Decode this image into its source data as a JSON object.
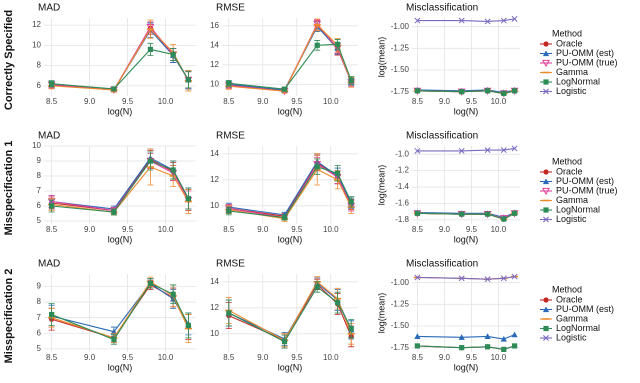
{
  "rows": [
    {
      "label": "Correctly Specified",
      "legend_title": "Method"
    },
    {
      "label": "Misspecification 1",
      "legend_title": "Method"
    },
    {
      "label": "Misspecification 2",
      "legend_title": "Method"
    }
  ],
  "chart_data": [
    {
      "type": "line",
      "title": "MAD",
      "xlabel": "log(N)",
      "x": [
        8.5,
        9.32,
        9.8,
        10.1,
        10.3
      ],
      "xlim": [
        8.4,
        10.4
      ],
      "xticks": [
        8.5,
        {
          "value": 9,
          "label": "9.0"
        },
        9.5,
        {
          "value": 10,
          "label": "10.0"
        }
      ],
      "ylim": [
        5,
        12.7
      ],
      "yticks": [
        6,
        8,
        10,
        12
      ],
      "grid": true,
      "series": [
        {
          "name": "Oracle",
          "color": "#c62828",
          "marker": "circle",
          "values": [
            6.1,
            5.6,
            11.7,
            9.0,
            6.6
          ],
          "errors": [
            0.3,
            0.2,
            0.6,
            0.7,
            0.9
          ]
        },
        {
          "name": "PU-OMM (est)",
          "color": "#2a6ab8",
          "marker": "triangle",
          "values": [
            6.2,
            5.6,
            11.5,
            9.0,
            6.6
          ],
          "errors": [
            0.3,
            0.2,
            0.7,
            0.7,
            0.9
          ]
        },
        {
          "name": "PU-OMM (true)",
          "color": "#e0409c",
          "marker": "down",
          "values": [
            6.1,
            5.6,
            11.8,
            9.1,
            6.6
          ],
          "errors": [
            0.3,
            0.2,
            0.5,
            0.6,
            0.8
          ]
        },
        {
          "name": "Gamma",
          "color": "#ef8a2a",
          "marker": "dash",
          "values": [
            6.0,
            5.6,
            11.6,
            9.3,
            6.5
          ],
          "errors": [
            0.3,
            0.2,
            0.9,
            0.8,
            1.0
          ]
        },
        {
          "name": "LogNormal",
          "color": "#2e8b57",
          "marker": "square",
          "values": [
            6.2,
            5.7,
            9.6,
            9.1,
            6.6
          ],
          "errors": [
            0.3,
            0.2,
            0.6,
            0.6,
            0.8
          ]
        }
      ]
    },
    {
      "type": "line",
      "title": "RMSE",
      "xlabel": "log(N)",
      "x": [
        8.5,
        9.32,
        9.8,
        10.1,
        10.3
      ],
      "xlim": [
        8.4,
        10.4
      ],
      "xticks": [
        8.5,
        {
          "value": 9,
          "label": "9.0"
        },
        9.5,
        {
          "value": 10,
          "label": "10.0"
        }
      ],
      "ylim": [
        8.8,
        16.8
      ],
      "yticks": [
        10,
        12,
        14,
        16
      ],
      "grid": true,
      "series": [
        {
          "name": "Oracle",
          "color": "#c62828",
          "marker": "circle",
          "values": [
            9.9,
            9.4,
            16.0,
            13.6,
            10.3
          ],
          "errors": [
            0.3,
            0.2,
            0.5,
            0.6,
            0.4
          ]
        },
        {
          "name": "PU-OMM (est)",
          "color": "#2a6ab8",
          "marker": "triangle",
          "values": [
            10.0,
            9.4,
            15.9,
            13.7,
            10.3
          ],
          "errors": [
            0.3,
            0.2,
            0.5,
            0.6,
            0.4
          ]
        },
        {
          "name": "PU-OMM (true)",
          "color": "#e0409c",
          "marker": "down",
          "values": [
            9.9,
            9.3,
            16.2,
            13.7,
            10.2
          ],
          "errors": [
            0.3,
            0.2,
            0.4,
            0.5,
            0.4
          ]
        },
        {
          "name": "Gamma",
          "color": "#ef8a2a",
          "marker": "dash",
          "values": [
            9.8,
            9.3,
            16.1,
            14.0,
            10.2
          ],
          "errors": [
            0.3,
            0.2,
            0.6,
            0.7,
            0.5
          ]
        },
        {
          "name": "LogNormal",
          "color": "#2e8b57",
          "marker": "square",
          "values": [
            10.1,
            9.5,
            14.0,
            14.1,
            10.4
          ],
          "errors": [
            0.3,
            0.2,
            0.5,
            0.5,
            0.4
          ]
        }
      ]
    },
    {
      "type": "line",
      "title": "Misclassification",
      "xlabel": "log(N)",
      "ylabel": "log(mean)",
      "legend": "right",
      "x": [
        8.5,
        9.32,
        9.8,
        10.1,
        10.3
      ],
      "xlim": [
        8.4,
        10.4
      ],
      "xticks": [
        8.5,
        {
          "value": 9,
          "label": "9.0"
        },
        9.5,
        {
          "value": 10,
          "label": "10.0"
        }
      ],
      "ylim": [
        -1.8,
        -0.9
      ],
      "yticks": [
        -1.75,
        {
          "value": -1.5,
          "label": "-1.50"
        },
        -1.25,
        {
          "value": -1,
          "label": "-1.00"
        }
      ],
      "grid": true,
      "series": [
        {
          "name": "Oracle",
          "color": "#c62828",
          "marker": "circle",
          "values": [
            -1.74,
            -1.75,
            -1.74,
            -1.77,
            -1.74
          ]
        },
        {
          "name": "PU-OMM (est)",
          "color": "#2a6ab8",
          "marker": "triangle",
          "values": [
            -1.73,
            -1.74,
            -1.73,
            -1.76,
            -1.73
          ]
        },
        {
          "name": "PU-OMM (true)",
          "color": "#e0409c",
          "marker": "down",
          "values": [
            -1.74,
            -1.75,
            -1.74,
            -1.77,
            -1.74
          ]
        },
        {
          "name": "Gamma",
          "color": "#ef8a2a",
          "marker": "dash",
          "values": [
            -1.74,
            -1.75,
            -1.74,
            -1.77,
            -1.74
          ]
        },
        {
          "name": "LogNormal",
          "color": "#2e8b57",
          "marker": "square",
          "values": [
            -1.74,
            -1.75,
            -1.74,
            -1.77,
            -1.74
          ]
        },
        {
          "name": "Logistic",
          "color": "#7b68c0",
          "marker": "cross",
          "values": [
            -0.93,
            -0.93,
            -0.94,
            -0.93,
            -0.91
          ]
        }
      ]
    },
    {
      "type": "line",
      "title": "MAD",
      "xlabel": "log(N)",
      "x": [
        8.5,
        9.32,
        9.8,
        10.1,
        10.3
      ],
      "xlim": [
        8.4,
        10.4
      ],
      "xticks": [
        8.5,
        {
          "value": 9,
          "label": "9.0"
        },
        9.5,
        {
          "value": 10,
          "label": "10.0"
        }
      ],
      "ylim": [
        4.8,
        10
      ],
      "yticks": [
        5,
        6,
        7,
        8,
        9,
        10
      ],
      "grid": true,
      "series": [
        {
          "name": "Oracle",
          "color": "#c62828",
          "marker": "circle",
          "values": [
            6.2,
            5.7,
            9.1,
            8.3,
            6.4
          ],
          "errors": [
            0.4,
            0.2,
            0.6,
            0.6,
            0.7
          ]
        },
        {
          "name": "PU-OMM (est)",
          "color": "#2a6ab8",
          "marker": "triangle",
          "values": [
            6.3,
            5.8,
            9.2,
            8.4,
            6.5
          ],
          "errors": [
            0.4,
            0.2,
            0.6,
            0.6,
            0.7
          ]
        },
        {
          "name": "PU-OMM (true)",
          "color": "#e0409c",
          "marker": "down",
          "values": [
            6.3,
            5.7,
            9.0,
            8.2,
            6.4
          ],
          "errors": [
            0.4,
            0.2,
            0.5,
            0.5,
            0.6
          ]
        },
        {
          "name": "Gamma",
          "color": "#ef8a2a",
          "marker": "dash",
          "values": [
            6.1,
            5.6,
            8.6,
            8.0,
            6.3
          ],
          "errors": [
            0.4,
            0.2,
            1.2,
            0.7,
            0.8
          ]
        },
        {
          "name": "LogNormal",
          "color": "#2e8b57",
          "marker": "square",
          "values": [
            6.0,
            5.6,
            9.0,
            8.4,
            6.5
          ],
          "errors": [
            0.4,
            0.2,
            0.6,
            0.6,
            0.7
          ]
        }
      ]
    },
    {
      "type": "line",
      "title": "RMSE",
      "xlabel": "log(N)",
      "x": [
        8.5,
        9.32,
        9.8,
        10.1,
        10.3
      ],
      "xlim": [
        8.4,
        10.4
      ],
      "xticks": [
        8.5,
        {
          "value": 9,
          "label": "9.0"
        },
        9.5,
        {
          "value": 10,
          "label": "10.0"
        }
      ],
      "ylim": [
        8.6,
        14.6
      ],
      "yticks": [
        10,
        12,
        14
      ],
      "grid": true,
      "series": [
        {
          "name": "Oracle",
          "color": "#c62828",
          "marker": "circle",
          "values": [
            9.8,
            9.2,
            13.3,
            12.3,
            10.1
          ],
          "errors": [
            0.3,
            0.2,
            0.6,
            0.6,
            0.4
          ]
        },
        {
          "name": "PU-OMM (est)",
          "color": "#2a6ab8",
          "marker": "triangle",
          "values": [
            9.9,
            9.3,
            13.4,
            12.3,
            10.2
          ],
          "errors": [
            0.3,
            0.2,
            0.6,
            0.6,
            0.4
          ]
        },
        {
          "name": "PU-OMM (true)",
          "color": "#e0409c",
          "marker": "down",
          "values": [
            9.8,
            9.1,
            13.2,
            12.2,
            10.0
          ],
          "errors": [
            0.3,
            0.2,
            0.5,
            0.5,
            0.4
          ]
        },
        {
          "name": "Gamma",
          "color": "#ef8a2a",
          "marker": "dash",
          "values": [
            9.7,
            9.0,
            12.8,
            12.0,
            9.9
          ],
          "errors": [
            0.3,
            0.2,
            1.2,
            0.7,
            0.5
          ]
        },
        {
          "name": "LogNormal",
          "color": "#2e8b57",
          "marker": "square",
          "values": [
            9.6,
            9.1,
            13.0,
            12.5,
            10.3
          ],
          "errors": [
            0.3,
            0.2,
            0.6,
            0.6,
            0.4
          ]
        }
      ]
    },
    {
      "type": "line",
      "title": "Misclassification",
      "xlabel": "log(N)",
      "ylabel": "log(mean)",
      "legend": "right",
      "x": [
        8.5,
        9.32,
        9.8,
        10.1,
        10.3
      ],
      "xlim": [
        8.4,
        10.4
      ],
      "xticks": [
        8.5,
        {
          "value": 9,
          "label": "9.0"
        },
        9.5,
        {
          "value": 10,
          "label": "10.0"
        }
      ],
      "ylim": [
        -1.85,
        -0.9
      ],
      "yticks": [
        -1.8,
        -1.6,
        -1.4,
        -1.2,
        {
          "value": -1,
          "label": "-1.0"
        }
      ],
      "grid": true,
      "series": [
        {
          "name": "Oracle",
          "color": "#c62828",
          "marker": "circle",
          "values": [
            -1.72,
            -1.73,
            -1.73,
            -1.79,
            -1.72
          ]
        },
        {
          "name": "PU-OMM (est)",
          "color": "#2a6ab8",
          "marker": "triangle",
          "values": [
            -1.71,
            -1.72,
            -1.72,
            -1.77,
            -1.71
          ]
        },
        {
          "name": "PU-OMM (true)",
          "color": "#e0409c",
          "marker": "down",
          "values": [
            -1.72,
            -1.73,
            -1.73,
            -1.78,
            -1.72
          ]
        },
        {
          "name": "Gamma",
          "color": "#ef8a2a",
          "marker": "dash",
          "values": [
            -1.72,
            -1.73,
            -1.73,
            -1.79,
            -1.72
          ]
        },
        {
          "name": "LogNormal",
          "color": "#2e8b57",
          "marker": "square",
          "values": [
            -1.72,
            -1.73,
            -1.73,
            -1.79,
            -1.72
          ]
        },
        {
          "name": "Logistic",
          "color": "#7b68c0",
          "marker": "cross",
          "values": [
            -0.96,
            -0.96,
            -0.95,
            -0.95,
            -0.93
          ]
        }
      ]
    },
    {
      "type": "line",
      "title": "MAD",
      "xlabel": "log(N)",
      "x": [
        8.5,
        9.32,
        9.8,
        10.1,
        10.3
      ],
      "xlim": [
        8.4,
        10.4
      ],
      "xticks": [
        8.5,
        {
          "value": 9,
          "label": "9.0"
        },
        9.5,
        {
          "value": 10,
          "label": "10.0"
        }
      ],
      "ylim": [
        4.8,
        9.8
      ],
      "yticks": [
        5,
        6,
        7,
        8,
        9
      ],
      "grid": true,
      "series": [
        {
          "name": "Oracle",
          "color": "#c62828",
          "marker": "circle",
          "values": [
            6.9,
            5.7,
            9.1,
            8.3,
            6.4
          ],
          "errors": [
            0.7,
            0.3,
            0.3,
            0.6,
            0.8
          ]
        },
        {
          "name": "PU-OMM (est)",
          "color": "#2a6ab8",
          "marker": "triangle",
          "values": [
            7.1,
            6.1,
            9.2,
            8.2,
            6.6
          ],
          "errors": [
            0.7,
            0.3,
            0.3,
            0.6,
            0.7
          ]
        },
        {
          "name": "Gamma",
          "color": "#ef8a2a",
          "marker": "dash",
          "values": [
            7.0,
            5.7,
            9.3,
            8.4,
            6.3
          ],
          "errors": [
            0.6,
            0.3,
            0.3,
            0.7,
            0.9
          ]
        },
        {
          "name": "LogNormal",
          "color": "#2e8b57",
          "marker": "square",
          "values": [
            7.2,
            5.6,
            9.2,
            8.5,
            6.5
          ],
          "errors": [
            0.7,
            0.3,
            0.3,
            0.6,
            0.8
          ]
        }
      ]
    },
    {
      "type": "line",
      "title": "RMSE",
      "xlabel": "log(N)",
      "x": [
        8.5,
        9.32,
        9.8,
        10.1,
        10.3
      ],
      "xlim": [
        8.4,
        10.4
      ],
      "xticks": [
        8.5,
        {
          "value": 9,
          "label": "9.0"
        },
        9.5,
        {
          "value": 10,
          "label": "10.0"
        }
      ],
      "ylim": [
        8.6,
        14.6
      ],
      "yticks": [
        10,
        12,
        14
      ],
      "grid": true,
      "series": [
        {
          "name": "Oracle",
          "color": "#c62828",
          "marker": "circle",
          "values": [
            11.4,
            9.5,
            13.8,
            12.3,
            9.8
          ],
          "errors": [
            1.0,
            0.5,
            0.4,
            0.8,
            0.8
          ]
        },
        {
          "name": "PU-OMM (est)",
          "color": "#2a6ab8",
          "marker": "triangle",
          "values": [
            11.6,
            9.6,
            13.9,
            12.6,
            10.3
          ],
          "errors": [
            1.0,
            0.5,
            0.4,
            0.8,
            0.7
          ]
        },
        {
          "name": "Gamma",
          "color": "#ef8a2a",
          "marker": "dash",
          "values": [
            11.8,
            9.5,
            14.0,
            12.7,
            10.0
          ],
          "errors": [
            1.0,
            0.5,
            0.4,
            0.8,
            0.8
          ]
        },
        {
          "name": "LogNormal",
          "color": "#2e8b57",
          "marker": "square",
          "values": [
            11.6,
            9.4,
            13.6,
            12.4,
            10.4
          ],
          "errors": [
            1.0,
            0.5,
            0.4,
            0.8,
            0.7
          ]
        }
      ]
    },
    {
      "type": "line",
      "title": "Misclassification",
      "xlabel": "log(N)",
      "ylabel": "log(mean)",
      "legend": "right",
      "x": [
        8.5,
        9.32,
        9.8,
        10.1,
        10.3
      ],
      "xlim": [
        8.4,
        10.4
      ],
      "xticks": [
        8.5,
        {
          "value": 9,
          "label": "9.0"
        },
        9.5,
        {
          "value": 10,
          "label": "10.0"
        }
      ],
      "ylim": [
        -1.8,
        -0.9
      ],
      "yticks": [
        -1.75,
        {
          "value": -1.5,
          "label": "-1.50"
        },
        -1.25,
        {
          "value": -1,
          "label": "-1.00"
        }
      ],
      "grid": true,
      "series": [
        {
          "name": "Oracle",
          "color": "#c62828",
          "marker": "circle",
          "values": [
            -1.73,
            -1.75,
            -1.74,
            -1.77,
            -1.73
          ]
        },
        {
          "name": "PU-OMM (est)",
          "color": "#2a6ab8",
          "marker": "triangle",
          "values": [
            -1.62,
            -1.63,
            -1.62,
            -1.65,
            -1.6
          ]
        },
        {
          "name": "Gamma",
          "color": "#ef8a2a",
          "marker": "dash",
          "values": [
            -0.94,
            -0.95,
            -0.96,
            -0.95,
            -0.93
          ]
        },
        {
          "name": "LogNormal",
          "color": "#2e8b57",
          "marker": "square",
          "values": [
            -1.73,
            -1.75,
            -1.74,
            -1.77,
            -1.73
          ]
        },
        {
          "name": "Logistic",
          "color": "#7b68c0",
          "marker": "cross",
          "values": [
            -0.94,
            -0.95,
            -0.96,
            -0.95,
            -0.93
          ]
        }
      ]
    }
  ]
}
